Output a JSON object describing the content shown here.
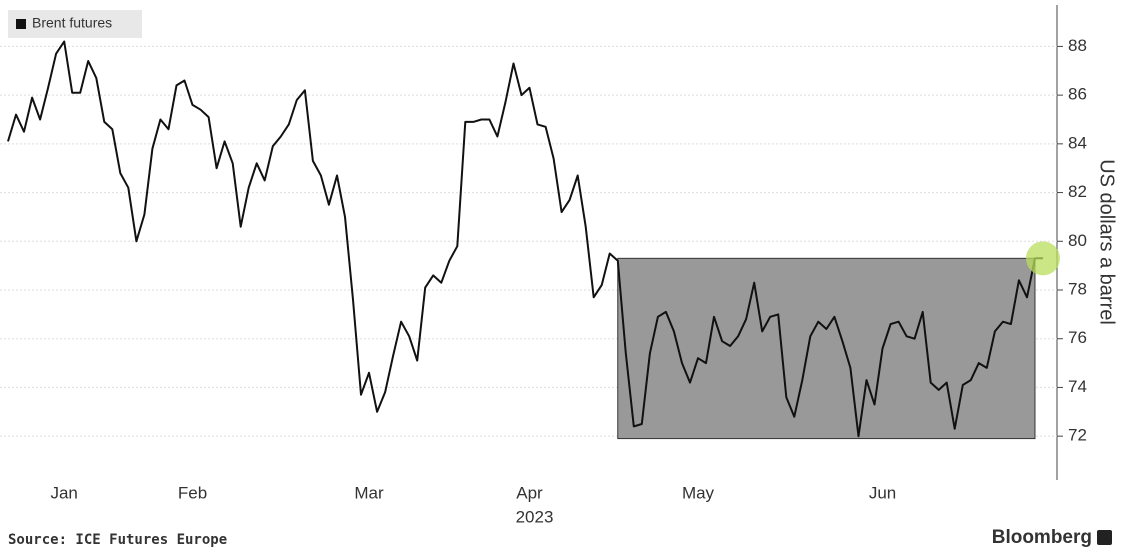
{
  "chart_data": {
    "type": "line",
    "categories": [
      null,
      null,
      null,
      null,
      null,
      null,
      null,
      "Jan",
      null,
      null,
      null,
      null,
      null,
      null,
      null,
      null,
      null,
      null,
      null,
      null,
      null,
      null,
      null,
      "Feb",
      null,
      null,
      null,
      null,
      null,
      null,
      null,
      null,
      null,
      null,
      null,
      null,
      null,
      null,
      null,
      null,
      null,
      null,
      null,
      null,
      null,
      "Mar",
      null,
      null,
      null,
      null,
      null,
      null,
      null,
      null,
      null,
      null,
      null,
      null,
      null,
      null,
      null,
      null,
      null,
      null,
      null,
      "Apr",
      null,
      null,
      null,
      null,
      null,
      null,
      null,
      null,
      null,
      null,
      null,
      null,
      null,
      null,
      null,
      null,
      null,
      null,
      null,
      null,
      "May",
      null,
      null,
      null,
      null,
      null,
      null,
      null,
      null,
      null,
      null,
      null,
      null,
      null,
      null,
      null,
      null,
      null,
      null,
      null,
      null,
      null,
      null,
      "Jun",
      null,
      null,
      null,
      null,
      null,
      null,
      null,
      null,
      null,
      null,
      null,
      null,
      null,
      null,
      null,
      null,
      null,
      null,
      null,
      null
    ],
    "xlabel": "2023",
    "series": [
      {
        "name": "Brent futures",
        "color": "#111111",
        "values": [
          84.1,
          85.2,
          84.5,
          85.9,
          85.0,
          86.3,
          87.7,
          88.2,
          86.1,
          86.1,
          87.4,
          86.7,
          84.9,
          84.6,
          82.8,
          82.2,
          80.0,
          81.1,
          83.8,
          85.0,
          84.6,
          86.4,
          86.6,
          85.6,
          85.4,
          85.1,
          83.0,
          84.1,
          83.2,
          80.6,
          82.2,
          83.2,
          82.5,
          83.9,
          84.3,
          84.8,
          85.8,
          86.2,
          83.3,
          82.7,
          81.5,
          82.7,
          81.0,
          77.6,
          73.7,
          74.6,
          73.0,
          73.8,
          75.3,
          76.7,
          76.1,
          75.1,
          78.1,
          78.6,
          78.3,
          79.2,
          79.8,
          84.9,
          84.9,
          85.0,
          85.0,
          84.3,
          85.7,
          87.3,
          86.0,
          86.3,
          84.8,
          84.7,
          83.4,
          81.2,
          81.7,
          82.7,
          80.6,
          77.7,
          78.2,
          79.5,
          79.2,
          75.4,
          72.4,
          72.5,
          75.4,
          76.9,
          77.1,
          76.3,
          75.0,
          74.2,
          75.2,
          75.0,
          76.9,
          75.9,
          75.7,
          76.1,
          76.8,
          78.3,
          76.3,
          76.9,
          77.0,
          73.6,
          72.8,
          74.3,
          76.1,
          76.7,
          76.4,
          76.9,
          75.9,
          74.8,
          72.0,
          74.3,
          73.3,
          75.6,
          76.6,
          76.7,
          76.1,
          76.0,
          77.1,
          74.2,
          73.9,
          74.2,
          72.3,
          74.1,
          74.3,
          75.0,
          74.8,
          76.3,
          76.7,
          76.6,
          78.4,
          77.7,
          79.3,
          79.3
        ]
      }
    ],
    "ylabel": "US dollars a barrel",
    "ylim": [
      70.2,
      89.7
    ],
    "yticks": [
      72,
      74,
      76,
      78,
      80,
      82,
      84,
      86,
      88
    ],
    "grid": true,
    "legend": "top-left",
    "highlight_box": {
      "x_from": 76,
      "x_to": 128,
      "y_from": 71.9,
      "y_to": 79.3,
      "color": "#999999"
    },
    "end_marker_color": "#b8dd5c",
    "source": "Source: ICE Futures Europe",
    "brand": "Bloomberg"
  }
}
